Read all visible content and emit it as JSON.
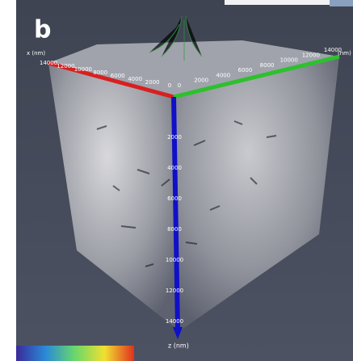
{
  "panel_label": "b",
  "x_axis": {
    "label": "x (nm)",
    "ticks": [
      14000,
      12000,
      10000,
      8000,
      6000,
      4000,
      2000,
      0
    ]
  },
  "y_axis": {
    "ticks": [
      0,
      2000,
      4000,
      6000,
      8000,
      10000,
      12000,
      14000
    ],
    "label": "(nm)"
  },
  "z_axis": {
    "label": "z (nm)",
    "ticks": [
      2000,
      4000,
      6000,
      8000,
      10000,
      12000,
      14000
    ]
  }
}
